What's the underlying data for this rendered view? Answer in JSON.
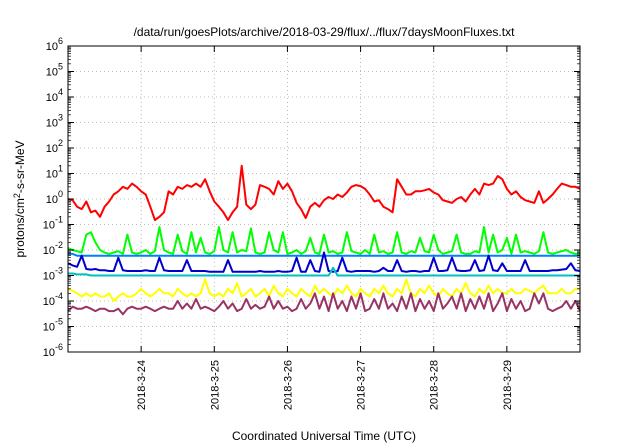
{
  "chart_data": {
    "type": "line",
    "title": "/data/run/goesPlots/archive/2018-03-29/flux/../flux/7daysMoonFluxes.txt",
    "xlabel": "Coordinated Universal Time (UTC)",
    "ylabel": {
      "base": "protons/cm",
      "sup": "2",
      "rest": "-s-sr-MeV"
    },
    "y_scale": "log",
    "ylim": [
      1e-06,
      1000000.0
    ],
    "y_ticks": [
      {
        "exp": "-6"
      },
      {
        "exp": "-5"
      },
      {
        "exp": "-4"
      },
      {
        "exp": "-3"
      },
      {
        "exp": "-2"
      },
      {
        "exp": "-1"
      },
      {
        "exp": "0"
      },
      {
        "exp": "1"
      },
      {
        "exp": "2"
      },
      {
        "exp": "3"
      },
      {
        "exp": "4"
      },
      {
        "exp": "5"
      },
      {
        "exp": "6"
      }
    ],
    "xlim": [
      0,
      7
    ],
    "x_ticks": [
      {
        "value": 1,
        "label": "2018-3-24"
      },
      {
        "value": 2,
        "label": "2018-3-25"
      },
      {
        "value": 3,
        "label": "2018-3-26"
      },
      {
        "value": 4,
        "label": "2018-3-27"
      },
      {
        "value": 5,
        "label": "2018-3-28"
      },
      {
        "value": 6,
        "label": "2018-3-29"
      }
    ],
    "grid": true,
    "series": [
      {
        "color": "#ff0000",
        "values": [
          1.0,
          0.9,
          0.5,
          0.4,
          0.8,
          0.3,
          0.35,
          0.2,
          0.5,
          0.8,
          1.5,
          2,
          3,
          2.5,
          4,
          3,
          2,
          1.5,
          0.5,
          0.15,
          0.2,
          0.3,
          2,
          1.5,
          3,
          2.5,
          3.5,
          3,
          4,
          3,
          6,
          2,
          0.8,
          0.5,
          0.3,
          0.15,
          0.3,
          0.5,
          20,
          0.6,
          0.4,
          0.6,
          3.5,
          3,
          2.5,
          1.5,
          5,
          2.5,
          4,
          2,
          0.7,
          0.4,
          0.18,
          0.5,
          0.7,
          0.5,
          0.9,
          1.2,
          1,
          1.5,
          1.2,
          1.8,
          3,
          3.5,
          3.2,
          2.5,
          1.5,
          0.8,
          0.9,
          0.5,
          0.4,
          0.3,
          6,
          3,
          1.5,
          1.5,
          2,
          2,
          2.2,
          2.5,
          1.8,
          1.5,
          0.9,
          0.8,
          0.7,
          1,
          1.2,
          0.8,
          1.5,
          2.5,
          1.5,
          4,
          3.5,
          4,
          8,
          6,
          2.5,
          1.5,
          2,
          1.2,
          0.9,
          0.8,
          0.7,
          2,
          0.7,
          1,
          1.5,
          2.5,
          4,
          3.5,
          3,
          3,
          2.5
        ]
      },
      {
        "color": "#00ff00",
        "values": [
          0.012,
          0.01,
          0.009,
          0.008,
          0.04,
          0.05,
          0.02,
          0.01,
          0.008,
          0.007,
          0.008,
          0.009,
          0.007,
          0.04,
          0.008,
          0.007,
          0.008,
          0.01,
          0.007,
          0.009,
          0.08,
          0.01,
          0.008,
          0.007,
          0.04,
          0.009,
          0.007,
          0.05,
          0.008,
          0.03,
          0.008,
          0.007,
          0.009,
          0.08,
          0.01,
          0.008,
          0.05,
          0.008,
          0.01,
          0.009,
          0.07,
          0.008,
          0.007,
          0.008,
          0.05,
          0.01,
          0.008,
          0.05,
          0.007,
          0.008,
          0.01,
          0.007,
          0.009,
          0.03,
          0.008,
          0.007,
          0.04,
          0.008,
          0.009,
          0.007,
          0.008,
          0.05,
          0.009,
          0.008,
          0.007,
          0.01,
          0.007,
          0.04,
          0.008,
          0.009,
          0.007,
          0.008,
          0.05,
          0.008,
          0.007,
          0.009,
          0.008,
          0.03,
          0.009,
          0.008,
          0.04,
          0.01,
          0.007,
          0.008,
          0.009,
          0.04,
          0.008,
          0.007,
          0.007,
          0.009,
          0.008,
          0.08,
          0.008,
          0.04,
          0.008,
          0.01,
          0.03,
          0.007,
          0.04,
          0.008,
          0.009,
          0.008,
          0.007,
          0.009,
          0.05,
          0.008,
          0.007,
          0.008,
          0.009,
          0.01,
          0.008,
          0.007,
          0.007
        ]
      },
      {
        "color": "#0080ff",
        "values": [
          0.007,
          0.007,
          0.006,
          0.006,
          0.006,
          0.006,
          0.006,
          0.006,
          0.006,
          0.006,
          0.006,
          0.006,
          0.006,
          0.006,
          0.006,
          0.006,
          0.006,
          0.006,
          0.006,
          0.006,
          0.006,
          0.006,
          0.006,
          0.006,
          0.006,
          0.006,
          0.006,
          0.006,
          0.006,
          0.006,
          0.006,
          0.006,
          0.006,
          0.006,
          0.006,
          0.006,
          0.006,
          0.006,
          0.006,
          0.006,
          0.006,
          0.006,
          0.006,
          0.006,
          0.006,
          0.006,
          0.006,
          0.006,
          0.006,
          0.006,
          0.006,
          0.006,
          0.006,
          0.006,
          0.006,
          0.006,
          0.006,
          0.006,
          0.006,
          0.006,
          0.006,
          0.006,
          0.006,
          0.006,
          0.006,
          0.006,
          0.006,
          0.006,
          0.006,
          0.006,
          0.006,
          0.006,
          0.006,
          0.006,
          0.006,
          0.006,
          0.006,
          0.006,
          0.006,
          0.006,
          0.006,
          0.006,
          0.006,
          0.006,
          0.006,
          0.006,
          0.006,
          0.006,
          0.006,
          0.006,
          0.006,
          0.006,
          0.006,
          0.006,
          0.006,
          0.006,
          0.006,
          0.006,
          0.006,
          0.006,
          0.006,
          0.006,
          0.006,
          0.006,
          0.006,
          0.006,
          0.006,
          0.006,
          0.006,
          0.006,
          0.006,
          0.006,
          0.006
        ]
      },
      {
        "color": "#0000cc",
        "values": [
          0.003,
          0.0025,
          0.0022,
          0.006,
          0.0018,
          0.0017,
          0.0018,
          0.0016,
          0.0016,
          0.0015,
          0.0015,
          0.005,
          0.0016,
          0.0015,
          0.0015,
          0.0015,
          0.0015,
          0.0016,
          0.0015,
          0.0015,
          0.005,
          0.0016,
          0.0015,
          0.0015,
          0.0015,
          0.0015,
          0.004,
          0.0015,
          0.0015,
          0.0015,
          0.0015,
          0.0014,
          0.0014,
          0.0014,
          0.0014,
          0.004,
          0.0014,
          0.0014,
          0.0014,
          0.0014,
          0.0014,
          0.0014,
          0.0015,
          0.0014,
          0.0014,
          0.0014,
          0.0015,
          0.0014,
          0.0014,
          0.0015,
          0.005,
          0.0014,
          0.0014,
          0.004,
          0.0015,
          0.0014,
          0.008,
          0.0015,
          0.0014,
          0.0015,
          0.005,
          0.0015,
          0.0014,
          0.0015,
          0.0015,
          0.0015,
          0.0015,
          0.0014,
          0.0015,
          0.002,
          0.0015,
          0.0015,
          0.004,
          0.0015,
          0.0014,
          0.0015,
          0.0015,
          0.0014,
          0.0015,
          0.0015,
          0.005,
          0.0015,
          0.0015,
          0.0016,
          0.005,
          0.0016,
          0.0015,
          0.0015,
          0.0016,
          0.004,
          0.0015,
          0.0016,
          0.006,
          0.0016,
          0.0015,
          0.003,
          0.0015,
          0.0015,
          0.0015,
          0.0015,
          0.004,
          0.0015,
          0.0015,
          0.0015,
          0.0015,
          0.0015,
          0.0016,
          0.0016,
          0.0017,
          0.0018,
          0.003,
          0.0016,
          0.0015
        ]
      },
      {
        "color": "#00c0c0",
        "values": [
          0.0012,
          0.0012,
          0.0011,
          0.0011,
          0.0011,
          0.001,
          0.001,
          0.001,
          0.001,
          0.001,
          0.001,
          0.001,
          0.001,
          0.001,
          0.001,
          0.001,
          0.001,
          0.001,
          0.001,
          0.001,
          0.001,
          0.001,
          0.001,
          0.001,
          0.001,
          0.001,
          0.001,
          0.001,
          0.001,
          0.001,
          0.001,
          0.001,
          0.001,
          0.001,
          0.001,
          0.001,
          0.001,
          0.001,
          0.001,
          0.001,
          0.001,
          0.001,
          0.001,
          0.001,
          0.001,
          0.001,
          0.001,
          0.001,
          0.001,
          0.001,
          0.001,
          0.001,
          0.001,
          0.001,
          0.001,
          0.001,
          0.001,
          0.001,
          0.002,
          0.001,
          0.001,
          0.001,
          0.001,
          0.001,
          0.001,
          0.001,
          0.001,
          0.001,
          0.001,
          0.001,
          0.001,
          0.001,
          0.001,
          0.001,
          0.001,
          0.001,
          0.001,
          0.001,
          0.001,
          0.001,
          0.001,
          0.001,
          0.001,
          0.001,
          0.001,
          0.001,
          0.001,
          0.001,
          0.001,
          0.001,
          0.001,
          0.001,
          0.001,
          0.001,
          0.001,
          0.001,
          0.001,
          0.001,
          0.001,
          0.001,
          0.001,
          0.001,
          0.001,
          0.001,
          0.001,
          0.001,
          0.001,
          0.001,
          0.001,
          0.001,
          0.001,
          0.001,
          0.001
        ]
      },
      {
        "color": "#ffff00",
        "values": [
          0.0003,
          0.00025,
          0.0002,
          0.00015,
          0.0002,
          0.00015,
          0.0002,
          0.00015,
          0.00015,
          0.0002,
          0.0001,
          0.00015,
          0.0002,
          0.00015,
          0.00015,
          0.0002,
          0.0003,
          0.0002,
          0.00015,
          0.0002,
          0.0003,
          0.0002,
          0.0002,
          0.00015,
          0.0003,
          0.0002,
          0.00015,
          0.0002,
          0.00015,
          0.0002,
          0.0007,
          0.0002,
          0.00015,
          0.0002,
          0.00015,
          0.0003,
          0.0002,
          0.0005,
          0.00015,
          0.0002,
          0.0003,
          0.00015,
          0.0002,
          0.0003,
          0.00015,
          0.0004,
          0.0002,
          0.00015,
          0.0003,
          0.0002,
          0.00015,
          0.0003,
          0.0002,
          0.00015,
          0.0004,
          0.0002,
          0.0003,
          0.0002,
          0.00015,
          0.0003,
          0.0002,
          0.0004,
          0.0002,
          0.00015,
          0.0003,
          0.0002,
          0.00015,
          0.0003,
          0.0002,
          0.0004,
          0.0002,
          0.00015,
          0.0003,
          0.0002,
          0.0007,
          0.0002,
          0.00015,
          0.0003,
          0.0002,
          0.0004,
          0.0002,
          0.00015,
          0.0003,
          0.0002,
          0.00015,
          0.0003,
          0.0002,
          0.0005,
          0.0002,
          0.00015,
          0.0003,
          0.0002,
          0.0004,
          0.0002,
          0.0003,
          0.0002,
          0.0002,
          0.0003,
          0.0002,
          0.0002,
          0.0003,
          0.00025,
          0.0002,
          0.0003,
          0.0004,
          0.0002,
          0.0002,
          0.0002,
          0.0003,
          0.0002,
          0.0002,
          0.0003,
          0.0003
        ]
      },
      {
        "color": "#993366",
        "values": [
          4e-05,
          6e-05,
          5e-05,
          5e-05,
          6e-05,
          5e-05,
          4e-05,
          5e-05,
          5e-05,
          4e-05,
          4e-05,
          5e-05,
          3e-05,
          5e-05,
          6e-05,
          5e-05,
          5e-05,
          6e-05,
          5e-05,
          4e-05,
          5e-05,
          6e-05,
          5e-05,
          5e-05,
          0.0001,
          5e-05,
          8e-05,
          5e-05,
          0.00012,
          5e-05,
          6e-05,
          5e-05,
          4e-05,
          6e-05,
          0.0001,
          5e-05,
          8e-05,
          4e-05,
          5e-05,
          0.00012,
          5e-05,
          7e-05,
          5e-05,
          6e-05,
          0.00015,
          5e-05,
          0.0001,
          5e-05,
          6e-05,
          4e-05,
          5e-05,
          0.00012,
          5e-05,
          8e-05,
          0.0002,
          5e-05,
          0.00015,
          4e-05,
          0.0002,
          5e-05,
          0.0001,
          4e-05,
          0.00015,
          5e-05,
          0.0002,
          4e-05,
          5e-05,
          0.00012,
          5e-05,
          0.0002,
          5e-05,
          8e-05,
          4e-05,
          0.00015,
          5e-05,
          0.0002,
          4e-05,
          0.00012,
          5e-05,
          0.0001,
          4e-05,
          0.0002,
          5e-05,
          8e-05,
          0.00015,
          5e-05,
          0.0002,
          4e-05,
          0.00012,
          5e-05,
          0.00015,
          5e-05,
          0.0002,
          4e-05,
          8e-05,
          0.0002,
          4e-05,
          0.00012,
          5e-05,
          0.0001,
          4e-05,
          5e-05,
          0.0002,
          8e-05,
          0.0002,
          5e-05,
          4e-05,
          5e-05,
          6e-05,
          0.0001,
          5e-05,
          0.0001,
          4e-05
        ]
      }
    ]
  }
}
